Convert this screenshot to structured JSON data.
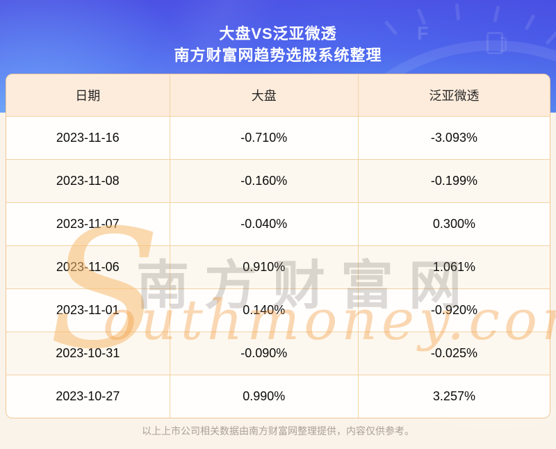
{
  "hero": {
    "title": "大盘VS泛亚微透",
    "subtitle": "南方财富网趋势选股系统整理"
  },
  "chart_data": {
    "type": "table",
    "title": "大盘VS泛亚微透",
    "subtitle": "南方财富网趋势选股系统整理",
    "columns": [
      "日期",
      "大盘",
      "泛亚微透"
    ],
    "rows": [
      [
        "2023-11-16",
        "-0.710%",
        "-3.093%"
      ],
      [
        "2023-11-08",
        "-0.160%",
        "-0.199%"
      ],
      [
        "2023-11-07",
        "-0.040%",
        "0.300%"
      ],
      [
        "2023-11-06",
        "0.910%",
        "1.061%"
      ],
      [
        "2023-11-01",
        "0.140%",
        "-0.920%"
      ],
      [
        "2023-10-31",
        "-0.090%",
        "-0.025%"
      ],
      [
        "2023-10-27",
        "0.990%",
        "3.257%"
      ]
    ]
  },
  "watermark": {
    "swash": "S",
    "cn": "南方财富网",
    "en": "outhmoney.com"
  },
  "decor": {
    "gauge_full_label": "F"
  },
  "footer": {
    "note": "以上上市公司相关数据由南方财富网整理提供，内容仅供参考。"
  },
  "colors": {
    "hero_top": "#4b4de2",
    "hero_bottom": "#5fa2f8",
    "table_header_bg": "#fdecdc",
    "row_alt_bg": "#fdf8ef",
    "row_bg": "#fffefc",
    "table_border": "#f4d2a4",
    "watermark_orange": "#f39a3d",
    "footer_text": "#a9a198"
  }
}
